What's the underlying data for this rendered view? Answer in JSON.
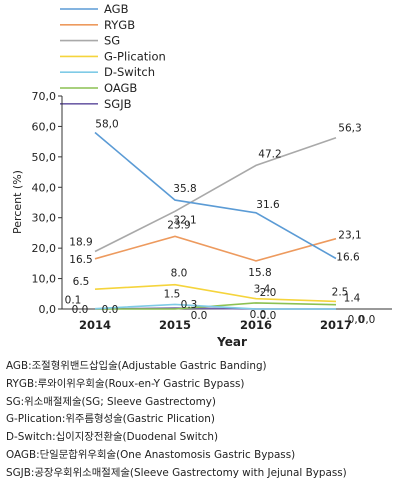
{
  "chart_data": {
    "type": "line",
    "categories": [
      "2014",
      "2015",
      "2016",
      "2017"
    ],
    "xlabel": "Year",
    "ylabel": "Percent (%)",
    "ylim": [
      0,
      70
    ],
    "yticks": [
      "0,0",
      "10,0",
      "20,0",
      "30,0",
      "40,0",
      "50,0",
      "60,0",
      "70,0"
    ],
    "legend_position": "top-left",
    "grid": false,
    "series": [
      {
        "name": "AGB",
        "color": "#5b9bd5",
        "values": [
          58.0,
          35.8,
          31.6,
          16.6
        ],
        "labels": [
          "58,0",
          "35.8",
          "31.6",
          "16.6"
        ]
      },
      {
        "name": "RYGB",
        "color": "#ed9a5e",
        "values": [
          16.5,
          23.9,
          15.8,
          23.1
        ],
        "labels": [
          "16.5",
          "23.9",
          "15.8",
          "23,1"
        ]
      },
      {
        "name": "SG",
        "color": "#a9a9a9",
        "values": [
          18.9,
          32.1,
          47.2,
          56.3
        ],
        "labels": [
          "18.9",
          "32.1",
          "47.2",
          "56,3"
        ]
      },
      {
        "name": "G-Plication",
        "color": "#f5d43c",
        "values": [
          6.5,
          8.0,
          3.4,
          2.5
        ],
        "labels": [
          "6.5",
          "8.0",
          "3.4",
          "2.5"
        ]
      },
      {
        "name": "D-Switch",
        "color": "#7fcbe6",
        "values": [
          0.1,
          1.5,
          0.0,
          0.0
        ],
        "labels": [
          "0.1",
          "1.5",
          "0.0",
          "0,0"
        ]
      },
      {
        "name": "OAGB",
        "color": "#8cc152",
        "values": [
          0.0,
          0.0,
          2.0,
          1.4
        ],
        "labels": [
          "0.0",
          "0.0",
          "2.0",
          "1.4"
        ]
      },
      {
        "name": "SGJB",
        "color": "#7060a8",
        "values": [
          0.0,
          0.3,
          0.0,
          0.0
        ],
        "labels": [
          "0.0",
          "0.3",
          "0.0",
          "0,0"
        ]
      }
    ]
  },
  "footnotes": [
    "AGB:조절형위밴드삽입술(Adjustable Gastric Banding)",
    "RYGB:루와이위우회술(Roux-en-Y Gastric Bypass)",
    "SG:위소매절제술(SG; Sleeve Gastrectomy)",
    "G-Plication:위주름형성술(Gastric Plication)",
    "D-Switch:십이지장전환술(Duodenal Switch)",
    "OAGB:단일문합위우회술(One Anastomosis Gastric Bypass)",
    "SGJB:공장우회위소매절제술(Sleeve Gastrectomy with Jejunal Bypass)"
  ]
}
